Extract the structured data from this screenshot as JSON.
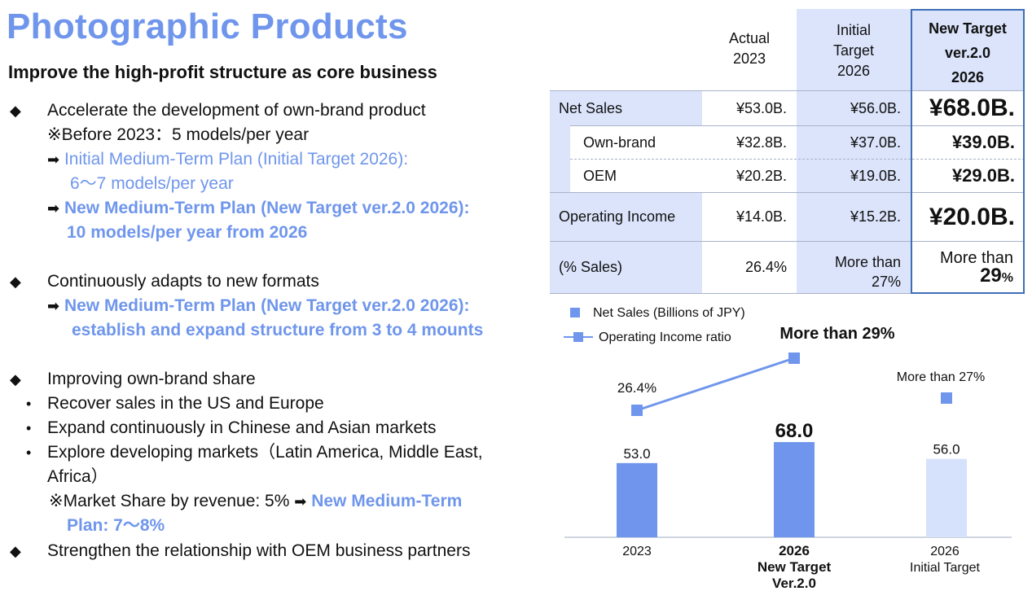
{
  "title": "Photographic Products",
  "subtitle": "Improve the high-profit structure as core business",
  "left": {
    "b1": "Accelerate the development of own-brand product",
    "b1_note": "※Before 2023：5 models/per year",
    "b1_a1": "Initial Medium-Term Plan (Initial Target 2026):",
    "b1_a1b": "6～7 models/per year",
    "b1_a2": "New Medium-Term Plan (New Target ver.2.0 2026):",
    "b1_a2b": "10 models/per year from 2026",
    "b2": "Continuously adapts to new formats",
    "b2_a1": "New Medium-Term Plan (New Target ver.2.0 2026):",
    "b2_a1b": "establish and expand structure from 3 to 4 mounts",
    "b3": "Improving own-brand share",
    "s1": "Recover sales in the US and Europe",
    "s2": "Expand continuously in Chinese and Asian markets",
    "s3": "Explore developing markets（Latin America, Middle East,",
    "s3b": "Africa）",
    "ms_prefix": "※Market Share by revenue: 5%",
    "ms_blue": "New Medium-Term",
    "ms_blue2": "Plan: 7～8%",
    "b4": "Strengthen the relationship with OEM business partners"
  },
  "table": {
    "h_actual_1": "Actual",
    "h_actual_2": "2023",
    "h_init_1": "Initial",
    "h_init_2": "Target",
    "h_init_3": "2026",
    "h_new_1": "New Target",
    "h_new_2": "ver.2.0",
    "h_new_3": "2026",
    "rows": [
      {
        "label": "Net Sales",
        "actual": "¥53.0B.",
        "initial": "¥56.0B.",
        "new": "¥68.0B."
      },
      {
        "label": "Own-brand",
        "actual": "¥32.8B.",
        "initial": "¥37.0B.",
        "new": "¥39.0B."
      },
      {
        "label": "OEM",
        "actual": "¥20.2B.",
        "initial": "¥19.0B.",
        "new": "¥29.0B."
      },
      {
        "label": "Operating Income",
        "actual": "¥14.0B.",
        "initial": "¥15.2B.",
        "new": "¥20.0B."
      },
      {
        "label": "(% Sales)",
        "actual": "26.4%",
        "initial_1": "More than",
        "initial_2": "27%",
        "new_1": "More than",
        "new_2": "29",
        "new_3": "%"
      }
    ]
  },
  "chart_data": {
    "type": "bar",
    "legend_bar": "Net Sales (Billions of JPY)",
    "legend_line": "Operating Income ratio",
    "categories": [
      "2023",
      "2026 New Target Ver.2.0",
      "2026 Initial Target"
    ],
    "cat_lines": [
      [
        "2023"
      ],
      [
        "2026",
        "New Target",
        "Ver.2.0"
      ],
      [
        "2026",
        "Initial Target"
      ]
    ],
    "net_sales": [
      53.0,
      68.0,
      56.0
    ],
    "net_sales_labels": [
      "53.0",
      "68.0",
      "56.0"
    ],
    "op_ratio": [
      26.4,
      29,
      27
    ],
    "op_ratio_labels": [
      "26.4%",
      "More than 29%",
      "More than 27%"
    ],
    "colors": {
      "bar": "#6f96ec",
      "bar_light": "#d6e1fb",
      "line": "#6f96ec"
    }
  }
}
